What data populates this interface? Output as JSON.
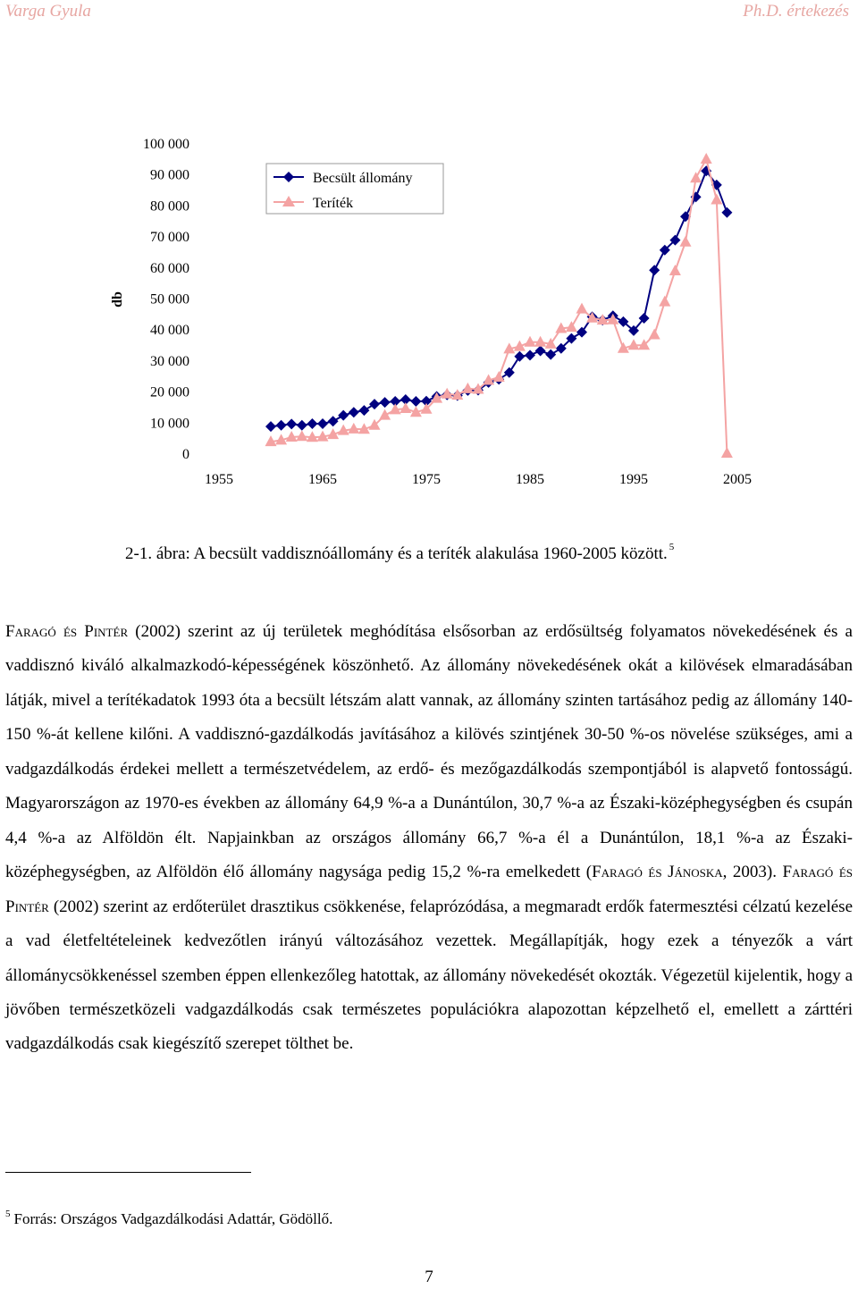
{
  "header": {
    "author": "Varga Gyula",
    "title": "Ph.D. értekezés"
  },
  "chart_data": {
    "type": "line",
    "title": "",
    "xlabel": "",
    "ylabel": "db",
    "xlim": [
      1955,
      2005
    ],
    "ylim": [
      0,
      100000
    ],
    "x_ticks": [
      "1955",
      "1965",
      "1975",
      "1985",
      "1995",
      "2005"
    ],
    "y_ticks": [
      "0",
      "10 000",
      "20 000",
      "30 000",
      "40 000",
      "50 000",
      "60 000",
      "70 000",
      "80 000",
      "90 000",
      "100 000"
    ],
    "legend_position": "top-left",
    "grid": false,
    "colors": {
      "becslt": "#000080",
      "teritek": "#f4a3a3"
    },
    "x": [
      1960,
      1961,
      1962,
      1963,
      1964,
      1965,
      1966,
      1967,
      1968,
      1969,
      1970,
      1971,
      1972,
      1973,
      1974,
      1975,
      1976,
      1977,
      1978,
      1979,
      1980,
      1981,
      1982,
      1983,
      1984,
      1985,
      1986,
      1987,
      1988,
      1989,
      1990,
      1991,
      1992,
      1993,
      1994,
      1995,
      1996,
      1997,
      1998,
      1999,
      2000,
      2001,
      2002,
      2003,
      2004
    ],
    "series": [
      {
        "name": "Becsült állomány",
        "marker": "diamond",
        "values": [
          8600,
          9000,
          9400,
          9000,
          9500,
          9500,
          10300,
          12200,
          13200,
          13800,
          15800,
          16400,
          16700,
          17300,
          16700,
          16800,
          18300,
          18800,
          18600,
          20200,
          20300,
          22800,
          23800,
          26000,
          31200,
          31600,
          33000,
          31800,
          33800,
          37000,
          39000,
          44000,
          42900,
          44300,
          42400,
          39500,
          43500,
          59000,
          65500,
          68700,
          76300,
          82600,
          91000,
          86500,
          77600
        ]
      },
      {
        "name": "Teríték",
        "marker": "triangle",
        "values": [
          3700,
          4200,
          5200,
          5400,
          5100,
          5300,
          6000,
          7300,
          7800,
          7700,
          9000,
          12200,
          14000,
          14400,
          13200,
          14200,
          17700,
          19100,
          18700,
          20800,
          20600,
          23500,
          24500,
          33600,
          34400,
          35800,
          35800,
          35200,
          40200,
          40600,
          46500,
          43600,
          42900,
          43000,
          33800,
          34800,
          34800,
          38200,
          48800,
          58800,
          68100,
          88700,
          94800,
          81700,
          0
        ]
      }
    ]
  },
  "caption": {
    "text": "2-1. ábra: A becsült vaddisznóállomány és a teríték alakulása 1960-2005 között.",
    "footnote_ref": "5"
  },
  "body": {
    "s1_auth": "Faragó és Pintér",
    "s1_text": " (2002) szerint az új területek meghódítása elsősorban az erdősültség folyamatos növekedésének és a vaddisznó kiváló alkalmazkodó-képességének köszönhető. Az állomány növekedésének okát a kilövések elmaradásában látják, mivel a terítékadatok 1993 óta a becsült létszám alatt vannak, az állomány szinten tartásához pedig az állomány 140-150 %-át kellene kilőni. A vaddisznó-gazdálkodás javításához a kilövés szintjének 30-50 %-os növelése szükséges, ami a vadgazdálkodás érdekei mellett a természetvédelem, az erdő- és mezőgazdálkodás szempontjából is alapvető fontosságú. Magyarországon az 1970-es években az állomány 64,9 %-a a Dunántúlon, 30,7 %-a az Északi-középhegységben és csupán 4,4 %-a az Alföldön élt. Napjainkban az országos állomány 66,7 %-a él a Dunántúlon, 18,1 %-a az Északi-középhegységben, az Alföldön élő állomány nagysága pedig 15,2 %-ra emelkedett (",
    "s2_auth": "Faragó és Jánoska",
    "s2_text": ", 2003). ",
    "s3_auth": "Faragó és Pintér",
    "s3_text": " (2002) szerint az erdőterület drasztikus csökkenése, felaprózódása, a megmaradt erdők fatermesztési célzatú kezelése a vad életfeltételeinek kedvezőtlen irányú változásához vezettek. Megállapítják, hogy ezek a tényezők a várt állománycsökkenéssel szemben éppen ellenkezőleg hatottak, az állomány növekedését okozták. Végezetül kijelentik, hogy a jövőben természetközeli vadgazdálkodás csak természetes populációkra alapozottan képzelhető el, emellett a zárttéri vadgazdálkodás csak kiegészítő szerepet tölthet be."
  },
  "footnote": {
    "number": "5",
    "text": "Forrás: Országos Vadgazdálkodási Adattár, Gödöllő."
  },
  "page_number": "7"
}
